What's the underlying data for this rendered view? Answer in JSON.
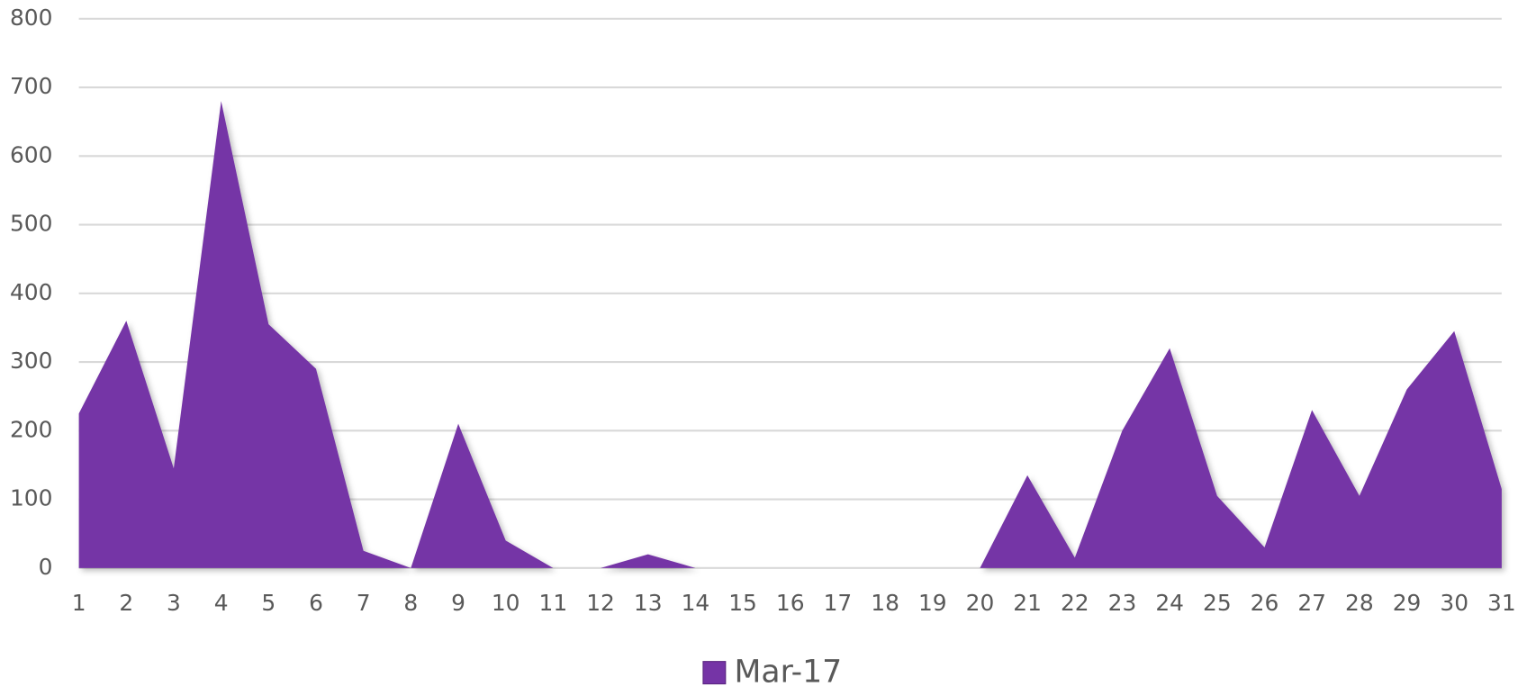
{
  "chart_data": {
    "type": "area",
    "categories": [
      "1",
      "2",
      "3",
      "4",
      "5",
      "6",
      "7",
      "8",
      "9",
      "10",
      "11",
      "12",
      "13",
      "14",
      "15",
      "16",
      "17",
      "18",
      "19",
      "20",
      "21",
      "22",
      "23",
      "24",
      "25",
      "26",
      "27",
      "28",
      "29",
      "30",
      "31"
    ],
    "series": [
      {
        "name": "Mar-17",
        "color": "#7534a6",
        "values": [
          225,
          360,
          145,
          680,
          355,
          290,
          25,
          0,
          210,
          40,
          0,
          0,
          20,
          0,
          0,
          0,
          0,
          0,
          0,
          0,
          135,
          15,
          200,
          320,
          105,
          30,
          230,
          105,
          260,
          345,
          115
        ]
      }
    ],
    "ylim": [
      0,
      800
    ],
    "yticks": [
      0,
      100,
      200,
      300,
      400,
      500,
      600,
      700,
      800
    ],
    "grid": true,
    "legend": "bottom"
  }
}
